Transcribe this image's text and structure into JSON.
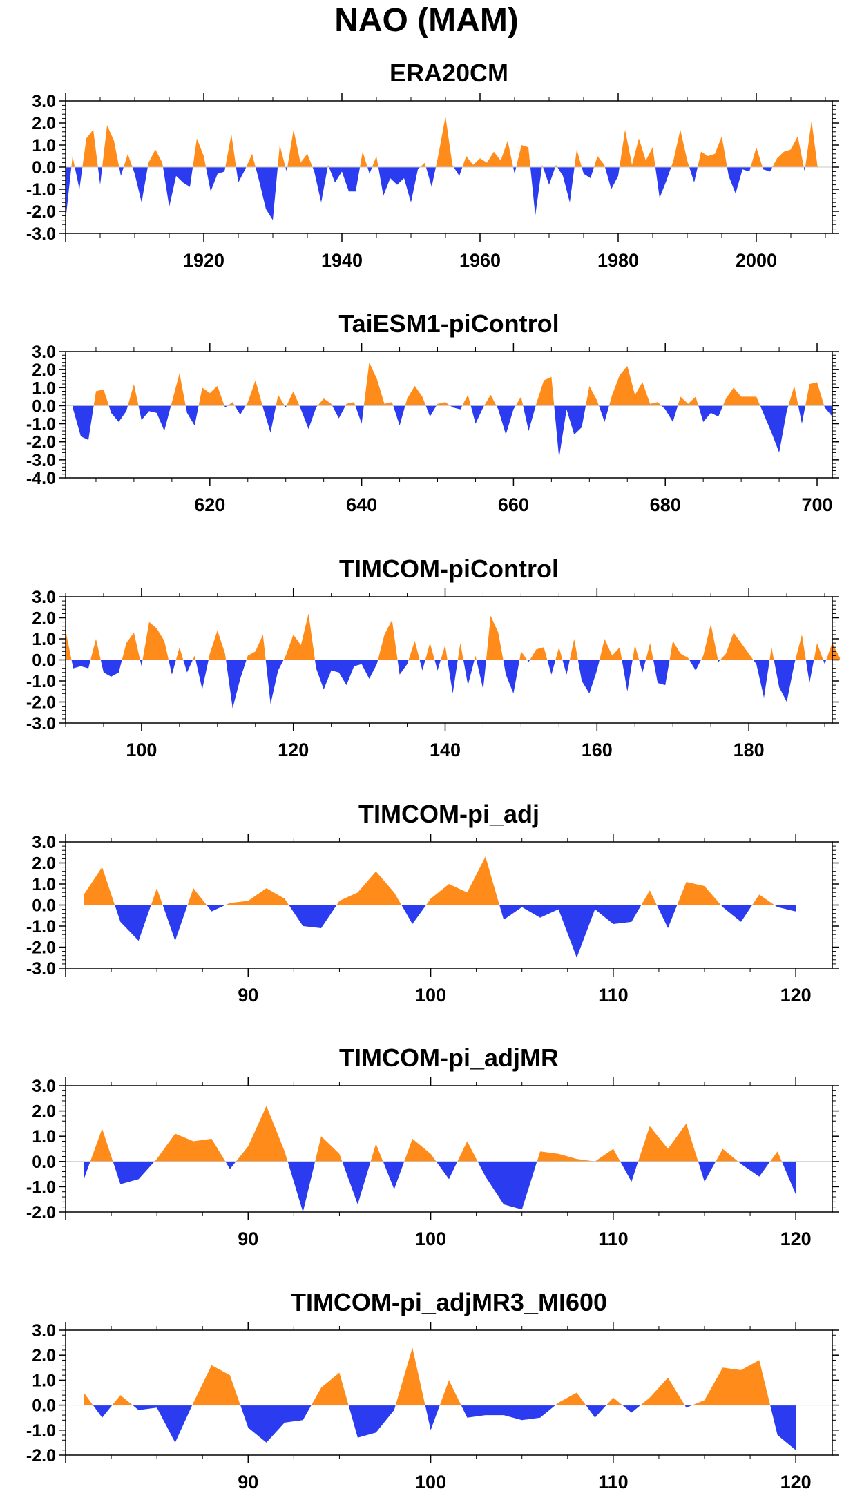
{
  "figure": {
    "title": "NAO (MAM)"
  },
  "colors": {
    "positive": "#ff8c1a",
    "negative": "#2b3cf0",
    "axis": "#000000"
  },
  "chart_data": [
    {
      "type": "area",
      "title": "ERA20CM",
      "xlim": [
        1900,
        2011
      ],
      "ylim": [
        -3,
        3
      ],
      "yticks": [
        3,
        2,
        1,
        0,
        -1,
        -2,
        -3
      ],
      "ytick_labels": [
        "3.0",
        "2.0",
        "1.0",
        "0.0",
        "-1.0",
        "-2.0",
        "-3.0"
      ],
      "xticks": [
        1920,
        1940,
        1960,
        1980,
        2000
      ],
      "x_start": 1900,
      "values": [
        -2.4,
        0.5,
        -1.0,
        1.3,
        1.7,
        -0.8,
        1.9,
        1.2,
        -0.4,
        0.6,
        -0.3,
        -1.6,
        0.2,
        0.8,
        0.2,
        -1.8,
        -0.4,
        -0.7,
        -0.9,
        1.3,
        0.5,
        -1.1,
        -0.3,
        -0.2,
        1.5,
        -0.7,
        -0.1,
        0.6,
        -0.6,
        -1.9,
        -2.4,
        1.0,
        -0.2,
        1.7,
        0.2,
        0.6,
        -0.2,
        -1.6,
        0.1,
        -0.7,
        -0.2,
        -1.1,
        -1.1,
        0.7,
        -0.3,
        0.5,
        -1.3,
        -0.5,
        -0.8,
        -0.5,
        -1.6,
        -0.1,
        0.2,
        -0.9,
        0.6,
        2.3,
        0.1,
        -0.4,
        0.5,
        0.1,
        0.4,
        0.2,
        0.7,
        0.3,
        1.2,
        -0.3,
        1.0,
        0.9,
        -2.2,
        0.1,
        -0.8,
        0.1,
        -0.4,
        -1.6,
        0.8,
        -0.3,
        -0.5,
        0.5,
        0.1,
        -1.0,
        -0.4,
        1.7,
        0.1,
        1.3,
        0.3,
        0.9,
        -1.4,
        -0.6,
        0.3,
        1.7,
        0.3,
        -0.7,
        0.7,
        0.5,
        0.6,
        1.4,
        -0.4,
        -1.2,
        -0.1,
        -0.2,
        0.9,
        -0.1,
        -0.2,
        0.4,
        0.7,
        0.8,
        1.4,
        -0.2,
        2.1,
        -0.3
      ]
    },
    {
      "type": "area",
      "title": "TaiESM1-piControl",
      "xlim": [
        601,
        702
      ],
      "ylim": [
        -4,
        3
      ],
      "yticks": [
        3,
        2,
        1,
        0,
        -1,
        -2,
        -3,
        -4
      ],
      "ytick_labels": [
        "3.0",
        "2.0",
        "1.0",
        "0.0",
        "-1.0",
        "-2.0",
        "-3.0",
        "-4.0"
      ],
      "xticks": [
        620,
        640,
        660,
        680,
        700
      ],
      "x_start": 602,
      "values": [
        -0.2,
        -1.7,
        -1.9,
        0.8,
        0.9,
        -0.4,
        -0.9,
        -0.3,
        1.2,
        -0.8,
        -0.3,
        -0.4,
        -1.4,
        0.2,
        1.8,
        -0.4,
        -1.1,
        1.0,
        0.7,
        1.1,
        -0.1,
        0.2,
        -0.5,
        0.2,
        1.4,
        -0.1,
        -1.5,
        0.6,
        -0.1,
        0.8,
        -0.2,
        -1.3,
        -0.1,
        0.4,
        0.1,
        -0.7,
        0.1,
        0.2,
        -1.0,
        2.4,
        1.5,
        0.1,
        0.2,
        -1.1,
        0.4,
        1.1,
        0.5,
        -0.6,
        0.1,
        0.2,
        -0.1,
        -0.2,
        0.6,
        -1.0,
        -0.1,
        0.6,
        -0.2,
        -1.6,
        -0.2,
        0.5,
        -1.4,
        0.1,
        1.4,
        1.6,
        -2.9,
        -0.2,
        -1.6,
        -1.2,
        1.1,
        0.3,
        -0.9,
        0.6,
        1.7,
        2.2,
        0.6,
        1.3,
        0.1,
        0.2,
        -0.2,
        -0.9,
        0.5,
        0.1,
        0.5,
        -0.9,
        -0.4,
        -0.6,
        0.4,
        1.0,
        0.5,
        0.5,
        0.5,
        -0.5,
        -1.5,
        -2.6,
        -0.3,
        1.1,
        -1.0,
        1.2,
        1.3,
        -0.1,
        -0.6
      ]
    },
    {
      "type": "area",
      "title": "TIMCOM-piControl",
      "xlim": [
        90,
        191
      ],
      "ylim": [
        -3,
        3
      ],
      "yticks": [
        3,
        2,
        1,
        0,
        -1,
        -2,
        -3
      ],
      "ytick_labels": [
        "3.0",
        "2.0",
        "1.0",
        "0.0",
        "-1.0",
        "-2.0",
        "-3.0"
      ],
      "xticks": [
        100,
        120,
        140,
        160,
        180
      ],
      "x_start": 90,
      "values": [
        1.4,
        -0.4,
        -0.3,
        -0.4,
        1.0,
        -0.6,
        -0.8,
        -0.6,
        0.8,
        1.3,
        -0.3,
        1.8,
        1.5,
        0.9,
        -0.7,
        0.6,
        -0.6,
        0.2,
        -1.4,
        0.3,
        1.4,
        0.3,
        -2.3,
        -0.9,
        0.2,
        0.4,
        1.2,
        -2.1,
        -0.5,
        0.2,
        1.2,
        0.7,
        2.2,
        -0.4,
        -1.4,
        -0.5,
        -0.6,
        -1.2,
        -0.3,
        -0.2,
        -0.9,
        -0.2,
        1.2,
        1.9,
        -0.7,
        -0.2,
        0.9,
        -0.5,
        0.8,
        -0.5,
        0.7,
        -1.6,
        0.8,
        -1.2,
        0.2,
        -1.4,
        2.1,
        1.3,
        -0.7,
        -1.6,
        0.4,
        -0.1,
        0.5,
        0.6,
        -0.7,
        0.6,
        -0.7,
        1.0,
        -1.0,
        -1.6,
        -0.5,
        1.0,
        0.2,
        0.6,
        -1.5,
        0.7,
        -0.6,
        0.8,
        -1.1,
        -1.2,
        0.9,
        0.3,
        0.1,
        -0.5,
        0.2,
        1.7,
        -0.1,
        0.3,
        1.3,
        0.8,
        0.3,
        -0.2,
        -1.8,
        0.6,
        -1.3,
        -2.0,
        -0.2,
        1.2,
        -1.1,
        0.8,
        -0.2,
        0.8,
        0.1
      ]
    },
    {
      "type": "area",
      "title": "TIMCOM-pi_adj",
      "xlim": [
        80,
        122
      ],
      "ylim": [
        -3,
        3
      ],
      "yticks": [
        3,
        2,
        1,
        0,
        -1,
        -2,
        -3
      ],
      "ytick_labels": [
        "3.0",
        "2.0",
        "1.0",
        "0.0",
        "-1.0",
        "-2.0",
        "-3.0"
      ],
      "xticks": [
        90,
        100,
        110,
        120
      ],
      "x_start": 81,
      "values": [
        0.5,
        1.8,
        -0.8,
        -1.7,
        0.8,
        -1.7,
        0.8,
        -0.3,
        0.1,
        0.2,
        0.8,
        0.3,
        -1.0,
        -1.1,
        0.2,
        0.6,
        1.6,
        0.6,
        -0.9,
        0.3,
        1.0,
        0.6,
        2.3,
        -0.7,
        -0.1,
        -0.6,
        -0.2,
        -2.5,
        -0.2,
        -0.9,
        -0.8,
        0.7,
        -1.1,
        1.1,
        0.9,
        -0.1,
        -0.8,
        0.5,
        -0.1,
        -0.3
      ]
    },
    {
      "type": "area",
      "title": "TIMCOM-pi_adjMR",
      "xlim": [
        80,
        122
      ],
      "ylim": [
        -2,
        3
      ],
      "yticks": [
        3,
        2,
        1,
        0,
        -1,
        -2
      ],
      "ytick_labels": [
        "3.0",
        "2.0",
        "1.0",
        "0.0",
        "-1.0",
        "-2.0"
      ],
      "xticks": [
        90,
        100,
        110,
        120
      ],
      "x_start": 81,
      "values": [
        -0.7,
        1.3,
        -0.9,
        -0.7,
        0.1,
        1.1,
        0.8,
        0.9,
        -0.3,
        0.6,
        2.2,
        0.4,
        -2.0,
        1.0,
        0.3,
        -1.7,
        0.7,
        -1.1,
        0.9,
        0.3,
        -0.7,
        0.8,
        -0.6,
        -1.7,
        -1.9,
        0.4,
        0.3,
        0.1,
        0.0,
        0.5,
        -0.8,
        1.4,
        0.5,
        1.5,
        -0.8,
        0.5,
        -0.1,
        -0.6,
        0.4,
        -1.3
      ]
    },
    {
      "type": "area",
      "title": "TIMCOM-pi_adjMR3_MI600",
      "xlim": [
        80,
        122
      ],
      "ylim": [
        -2,
        3
      ],
      "yticks": [
        3,
        2,
        1,
        0,
        -1,
        -2
      ],
      "ytick_labels": [
        "3.0",
        "2.0",
        "1.0",
        "0.0",
        "-1.0",
        "-2.0"
      ],
      "xticks": [
        90,
        100,
        110,
        120
      ],
      "x_start": 81,
      "values": [
        0.5,
        -0.5,
        0.4,
        -0.2,
        -0.1,
        -1.5,
        0.1,
        1.6,
        1.2,
        -0.9,
        -1.5,
        -0.7,
        -0.6,
        0.7,
        1.3,
        -1.3,
        -1.1,
        -0.2,
        2.3,
        -1.0,
        1.0,
        -0.5,
        -0.4,
        -0.4,
        -0.6,
        -0.5,
        0.1,
        0.5,
        -0.5,
        0.3,
        -0.3,
        0.3,
        1.1,
        -0.1,
        0.2,
        1.5,
        1.4,
        1.8,
        -1.2,
        -1.8
      ]
    }
  ]
}
